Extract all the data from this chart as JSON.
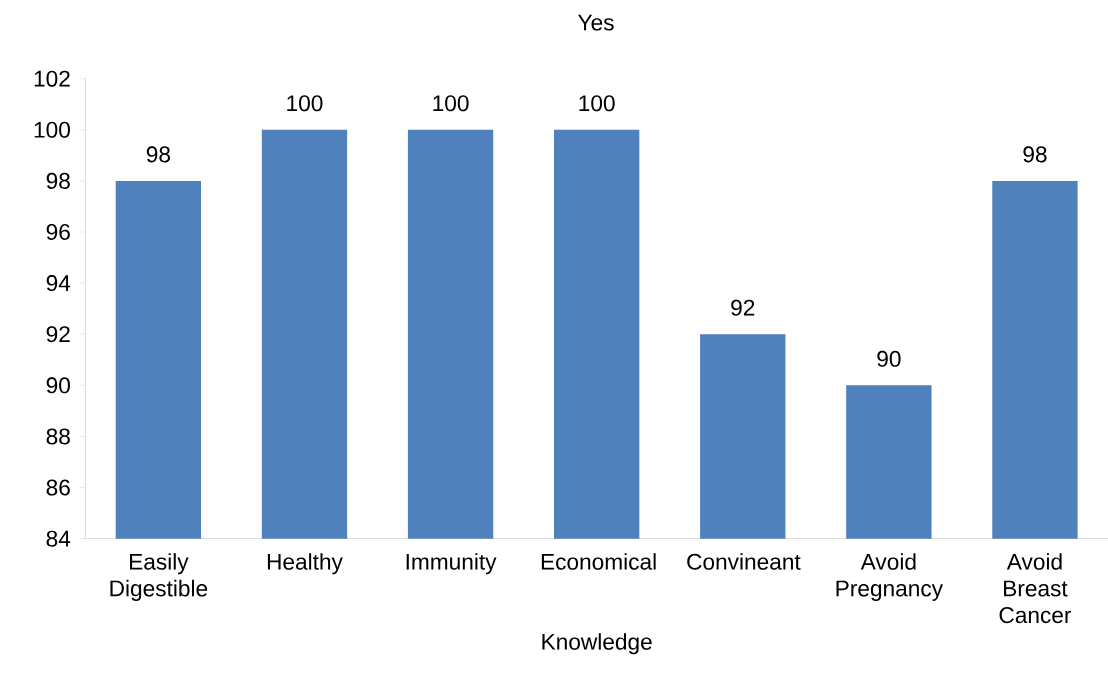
{
  "chart_data": {
    "type": "bar",
    "title": "Yes",
    "xlabel": "Knowledge",
    "categories": [
      "Easily Digestible",
      "Healthy",
      "Immunity",
      "Economical",
      "Convineant",
      "Avoid Pregnancy",
      "Avoid Breast Cancer"
    ],
    "values": [
      98,
      100,
      100,
      100,
      92,
      90,
      98
    ],
    "color": "#4f81bd",
    "ylim": [
      84,
      102
    ],
    "yticks": [
      84,
      86,
      88,
      90,
      92,
      94,
      96,
      98,
      100,
      102
    ],
    "data_labels": true
  }
}
